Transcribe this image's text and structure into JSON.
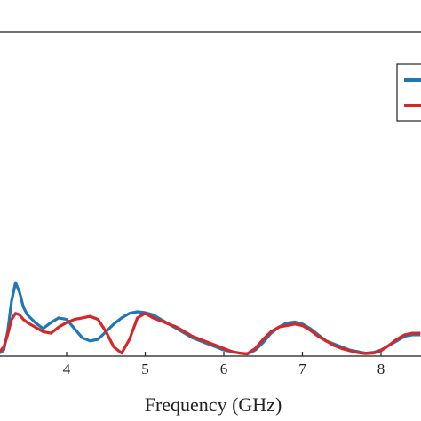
{
  "chart_data": {
    "type": "line",
    "title": "",
    "xlabel": "Frequency (GHz)",
    "ylabel": "",
    "xlim": [
      3.15,
      8.5
    ],
    "ylim": [
      0,
      100
    ],
    "x_ticks": [
      4,
      5,
      6,
      7,
      8
    ],
    "grid": false,
    "legend": "top-right",
    "series": [
      {
        "color": "#1f77b4",
        "x": [
          3.15,
          3.2,
          3.25,
          3.3,
          3.35,
          3.4,
          3.45,
          3.5,
          3.6,
          3.7,
          3.8,
          3.9,
          4.0,
          4.1,
          4.2,
          4.3,
          4.4,
          4.5,
          4.6,
          4.7,
          4.8,
          4.9,
          5.0,
          5.1,
          5.2,
          5.3,
          5.4,
          5.5,
          5.6,
          5.7,
          5.8,
          5.9,
          6.0,
          6.1,
          6.2,
          6.3,
          6.4,
          6.5,
          6.6,
          6.7,
          6.8,
          6.9,
          7.0,
          7.1,
          7.2,
          7.3,
          7.4,
          7.5,
          7.6,
          7.7,
          7.8,
          7.9,
          8.0,
          8.1,
          8.2,
          8.3,
          8.4,
          8.5
        ],
        "values": [
          1.0,
          2.0,
          8.0,
          18.0,
          24.0,
          21.0,
          16.0,
          13.5,
          11.0,
          9.0,
          11.0,
          12.5,
          12.0,
          9.0,
          6.0,
          5.0,
          5.5,
          8.0,
          10.5,
          12.5,
          14.0,
          14.5,
          14.2,
          13.5,
          12.0,
          10.5,
          9.0,
          7.5,
          6.0,
          5.0,
          4.0,
          3.0,
          2.0,
          1.5,
          1.0,
          0.7,
          2.0,
          4.5,
          7.5,
          9.5,
          10.8,
          11.2,
          10.5,
          9.0,
          7.0,
          5.0,
          4.0,
          3.0,
          2.0,
          1.5,
          1.0,
          1.2,
          2.0,
          3.5,
          5.0,
          6.5,
          7.0,
          7.0
        ]
      },
      {
        "color": "#d62728",
        "x": [
          3.15,
          3.2,
          3.25,
          3.3,
          3.35,
          3.4,
          3.45,
          3.5,
          3.6,
          3.7,
          3.8,
          3.9,
          4.0,
          4.1,
          4.2,
          4.3,
          4.4,
          4.5,
          4.6,
          4.7,
          4.8,
          4.9,
          5.0,
          5.1,
          5.2,
          5.3,
          5.4,
          5.5,
          5.6,
          5.7,
          5.8,
          5.9,
          6.0,
          6.1,
          6.2,
          6.3,
          6.4,
          6.5,
          6.6,
          6.7,
          6.8,
          6.9,
          7.0,
          7.1,
          7.2,
          7.3,
          7.4,
          7.5,
          7.6,
          7.7,
          7.8,
          7.9,
          8.0,
          8.1,
          8.2,
          8.3,
          8.4,
          8.5
        ],
        "values": [
          1.5,
          3.0,
          7.0,
          12.0,
          14.0,
          13.5,
          12.0,
          11.0,
          9.5,
          8.0,
          7.5,
          9.5,
          11.0,
          12.0,
          12.5,
          13.0,
          12.0,
          8.0,
          3.0,
          1.0,
          5.5,
          12.5,
          14.0,
          12.5,
          11.5,
          10.5,
          9.5,
          8.0,
          6.5,
          5.5,
          4.5,
          3.5,
          2.5,
          1.5,
          1.0,
          0.8,
          2.5,
          5.5,
          8.0,
          9.5,
          10.0,
          10.5,
          10.0,
          8.5,
          6.5,
          5.0,
          3.5,
          2.5,
          1.8,
          1.2,
          0.8,
          1.0,
          1.8,
          3.5,
          5.5,
          7.0,
          7.5,
          7.5
        ]
      }
    ]
  }
}
